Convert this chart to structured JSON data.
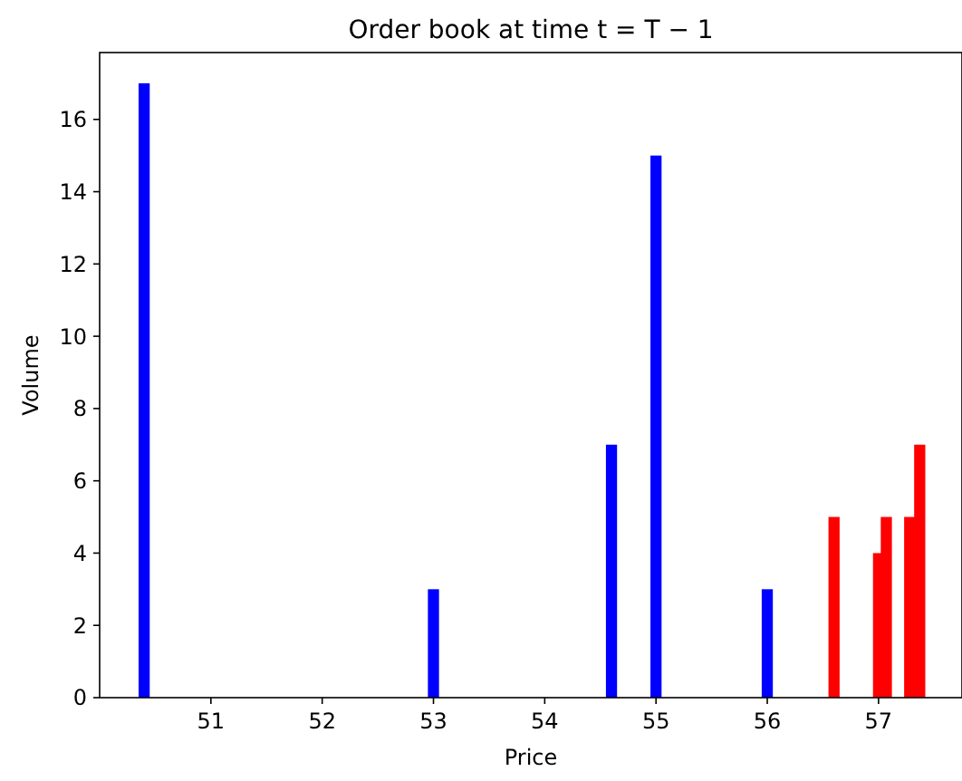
{
  "chart_data": {
    "type": "bar",
    "title": "Order book at time t = T − 1",
    "xlabel": "Price",
    "ylabel": "Volume",
    "series": [
      {
        "color": "#0000ff",
        "x": [
          50.4,
          53.0,
          54.6,
          55.0,
          56.0
        ],
        "values": [
          17,
          3,
          7,
          15,
          3
        ]
      },
      {
        "color": "#ff0000",
        "x": [
          56.6,
          57.0,
          57.07,
          57.28,
          57.37
        ],
        "values": [
          5,
          4,
          5,
          5,
          7
        ]
      }
    ],
    "xlim": [
      50.0,
      57.75
    ],
    "xticks": [
      51,
      52,
      53,
      54,
      55,
      56,
      57
    ],
    "ylim": [
      0,
      17.85
    ],
    "yticks": [
      0,
      2,
      4,
      6,
      8,
      10,
      12,
      14,
      16
    ]
  }
}
